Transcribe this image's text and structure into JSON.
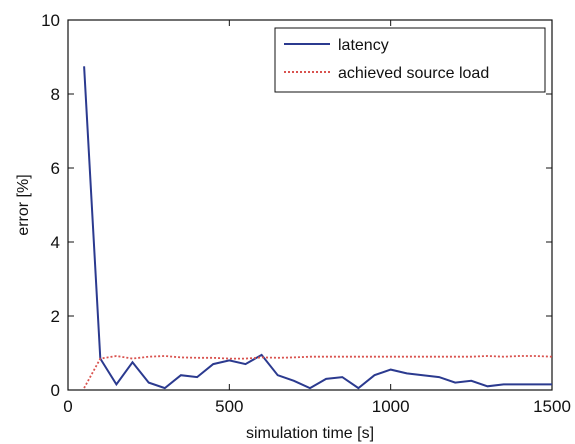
{
  "chart_data": {
    "type": "line",
    "title": "",
    "xlabel": "simulation time [s]",
    "ylabel": "error [%]",
    "xlim": [
      0,
      1500
    ],
    "ylim": [
      0,
      10
    ],
    "xticks": [
      "0",
      "500",
      "1000",
      "1500"
    ],
    "yticks": [
      "0",
      "2",
      "4",
      "6",
      "8",
      "10"
    ],
    "grid": false,
    "legend_position": "top-right",
    "series": [
      {
        "name": "latency",
        "color": "#2b3a8f",
        "style": "solid",
        "x": [
          50,
          100,
          150,
          200,
          250,
          300,
          350,
          400,
          450,
          500,
          550,
          600,
          650,
          700,
          750,
          800,
          850,
          900,
          950,
          1000,
          1050,
          1100,
          1150,
          1200,
          1250,
          1300,
          1350,
          1400,
          1450,
          1500
        ],
        "values": [
          8.75,
          0.85,
          0.15,
          0.75,
          0.2,
          0.05,
          0.4,
          0.35,
          0.7,
          0.8,
          0.7,
          0.95,
          0.4,
          0.25,
          0.05,
          0.3,
          0.35,
          0.05,
          0.4,
          0.55,
          0.45,
          0.4,
          0.35,
          0.2,
          0.25,
          0.1,
          0.15,
          0.15,
          0.15,
          0.15
        ]
      },
      {
        "name": "achieved source load",
        "color": "#d9534f",
        "style": "dotted",
        "x": [
          50,
          100,
          150,
          200,
          250,
          300,
          350,
          400,
          450,
          500,
          550,
          600,
          650,
          700,
          750,
          800,
          850,
          900,
          950,
          1000,
          1050,
          1100,
          1150,
          1200,
          1250,
          1300,
          1350,
          1400,
          1450,
          1500
        ],
        "values": [
          0.05,
          0.85,
          0.92,
          0.85,
          0.9,
          0.92,
          0.88,
          0.87,
          0.87,
          0.85,
          0.85,
          0.88,
          0.87,
          0.88,
          0.9,
          0.9,
          0.9,
          0.9,
          0.9,
          0.9,
          0.9,
          0.9,
          0.9,
          0.9,
          0.9,
          0.92,
          0.9,
          0.92,
          0.92,
          0.9
        ]
      }
    ]
  }
}
